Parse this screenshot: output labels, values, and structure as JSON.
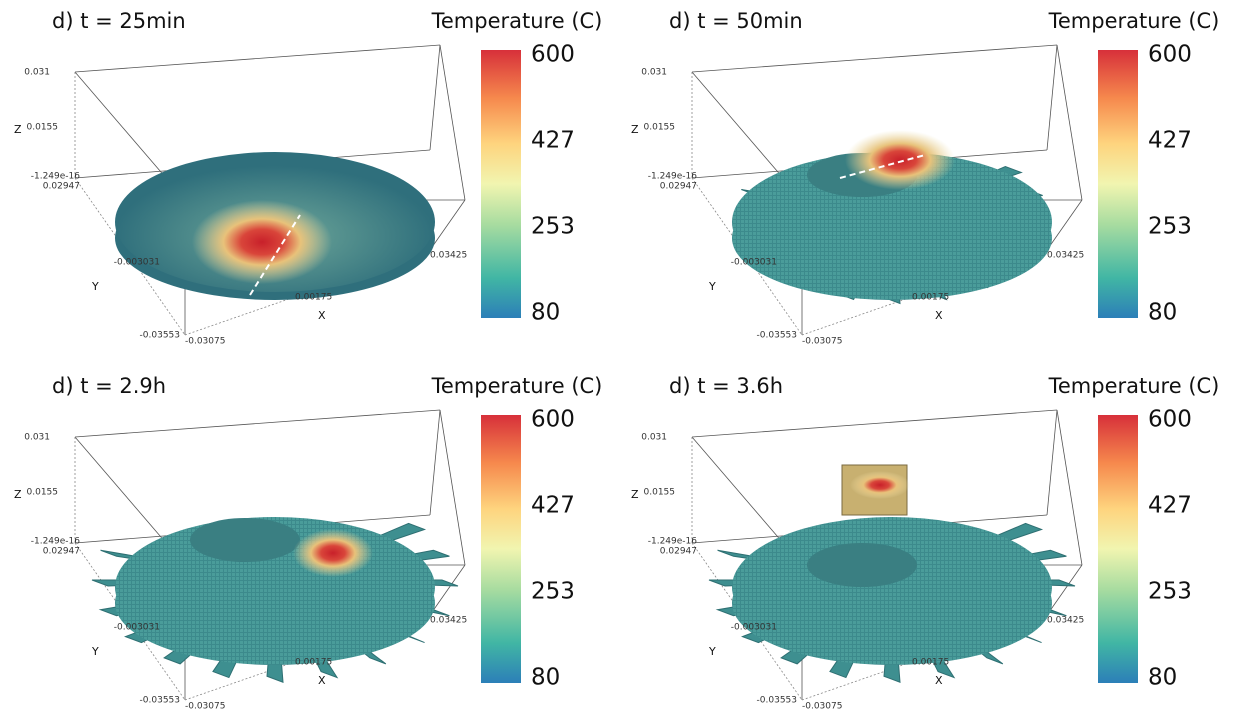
{
  "panels": [
    {
      "title": "d) t = 25min",
      "colorbar": {
        "label": "Temperature (C)",
        "ticks": [
          "600",
          "427",
          "253",
          "80"
        ]
      },
      "axes": {
        "z_label": "Z",
        "y_label": "Y",
        "x_label": "X",
        "z_ticks": [
          "0.031",
          "0.0155",
          "-1.249e-16"
        ],
        "y_ticks": [
          "0.02947",
          "-0.003031",
          "-0.03553"
        ],
        "x_ticks": [
          "-0.03075",
          "0.00175",
          "0.03425"
        ]
      }
    },
    {
      "title": "d) t = 50min",
      "colorbar": {
        "label": "Temperature (C)",
        "ticks": [
          "600",
          "427",
          "253",
          "80"
        ]
      },
      "axes": {
        "z_label": "Z",
        "y_label": "Y",
        "x_label": "X",
        "z_ticks": [
          "0.031",
          "0.0155",
          "-1.249e-16"
        ],
        "y_ticks": [
          "0.02947",
          "-0.003031",
          "-0.03553"
        ],
        "x_ticks": [
          "-0.03075",
          "0.00175",
          "0.03425"
        ]
      }
    },
    {
      "title": "d) t = 2.9h",
      "colorbar": {
        "label": "Temperature (C)",
        "ticks": [
          "600",
          "427",
          "253",
          "80"
        ]
      },
      "axes": {
        "z_label": "Z",
        "y_label": "Y",
        "x_label": "X",
        "z_ticks": [
          "0.031",
          "0.0155",
          "-1.249e-16"
        ],
        "y_ticks": [
          "0.02947",
          "-0.003031",
          "-0.03553"
        ],
        "x_ticks": [
          "-0.03075",
          "0.00175",
          "0.03425"
        ]
      }
    },
    {
      "title": "d) t = 3.6h",
      "colorbar": {
        "label": "Temperature (C)",
        "ticks": [
          "600",
          "427",
          "253",
          "80"
        ]
      },
      "axes": {
        "z_label": "Z",
        "y_label": "Y",
        "x_label": "X",
        "z_ticks": [
          "0.031",
          "0.0155",
          "-1.249e-16"
        ],
        "y_ticks": [
          "0.02947",
          "-0.003031",
          "-0.03553"
        ],
        "x_ticks": [
          "-0.03075",
          "0.00175",
          "0.03425"
        ]
      }
    }
  ]
}
